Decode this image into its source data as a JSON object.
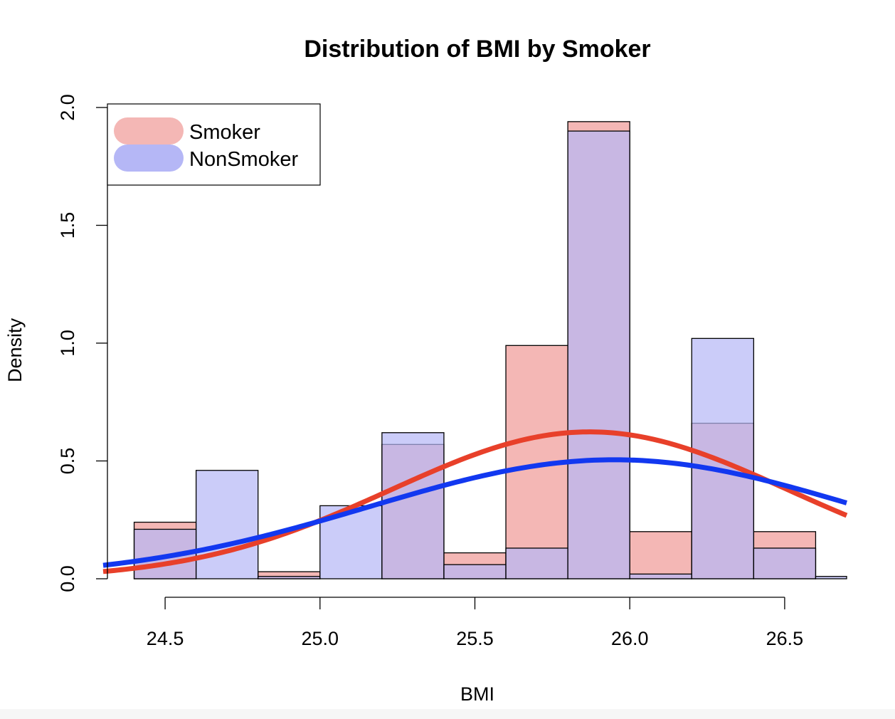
{
  "chart_data": {
    "type": "histogram",
    "title": "Distribution of BMI by Smoker",
    "xlabel": "BMI",
    "ylabel": "Density",
    "xlim": [
      24.3,
      26.7
    ],
    "ylim": [
      0,
      2.0
    ],
    "x_ticks": [
      "24.5",
      "25.0",
      "25.5",
      "26.0",
      "26.5"
    ],
    "y_ticks": [
      "0.0",
      "0.5",
      "1.0",
      "1.5",
      "2.0"
    ],
    "grid": false,
    "legend_position": "top-left",
    "bin_edges": [
      24.4,
      24.6,
      24.8,
      25.0,
      25.2,
      25.4,
      25.6,
      25.8,
      26.0,
      26.2,
      26.4,
      26.6,
      26.8
    ],
    "series": [
      {
        "name": "Smoker",
        "fill": "#f4b7b5",
        "curve_color": "#e8402a",
        "values": [
          0.24,
          0.0,
          0.03,
          0.0,
          0.57,
          0.11,
          0.99,
          1.94,
          0.2,
          0.66,
          0.2,
          0.0
        ],
        "normal_mean": 25.87,
        "normal_sd": 0.64
      },
      {
        "name": "NonSmoker",
        "fill": "#b5b7f6",
        "curve_color": "#1238f0",
        "values": [
          0.21,
          0.46,
          0.01,
          0.31,
          0.62,
          0.06,
          0.13,
          1.9,
          0.02,
          1.02,
          0.13,
          0.01
        ],
        "normal_mean": 25.95,
        "normal_sd": 0.79
      }
    ]
  }
}
